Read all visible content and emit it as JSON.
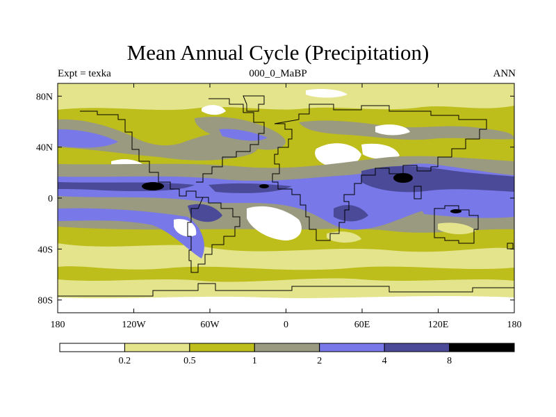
{
  "title": "Mean Annual Cycle (Precipitation)",
  "subtitle_left": "Expt = texka",
  "subtitle_center": "000_0_MaBP",
  "subtitle_right": "ANN",
  "map": {
    "projection": "cylindrical equidistant",
    "lon_range": [
      -180,
      180
    ],
    "lat_range": [
      -90,
      90
    ],
    "lon_ticks": [
      {
        "value": -180,
        "label": "180"
      },
      {
        "value": -120,
        "label": "120W"
      },
      {
        "value": -60,
        "label": "60W"
      },
      {
        "value": 0,
        "label": "0"
      },
      {
        "value": 60,
        "label": "60E"
      },
      {
        "value": 120,
        "label": "120E"
      },
      {
        "value": 180,
        "label": "180"
      }
    ],
    "lat_ticks": [
      {
        "value": 80,
        "label": "80N"
      },
      {
        "value": 40,
        "label": "40N"
      },
      {
        "value": 0,
        "label": "0"
      },
      {
        "value": -40,
        "label": "40S"
      },
      {
        "value": -80,
        "label": "80S"
      }
    ]
  },
  "colorbar": {
    "colors": [
      "#ffffff",
      "#e4e48c",
      "#bdbd1c",
      "#9a9a80",
      "#7878e8",
      "#4a4a98",
      "#000000"
    ],
    "labels": [
      "0.2",
      "0.5",
      "1",
      "2",
      "4",
      "8"
    ]
  }
}
